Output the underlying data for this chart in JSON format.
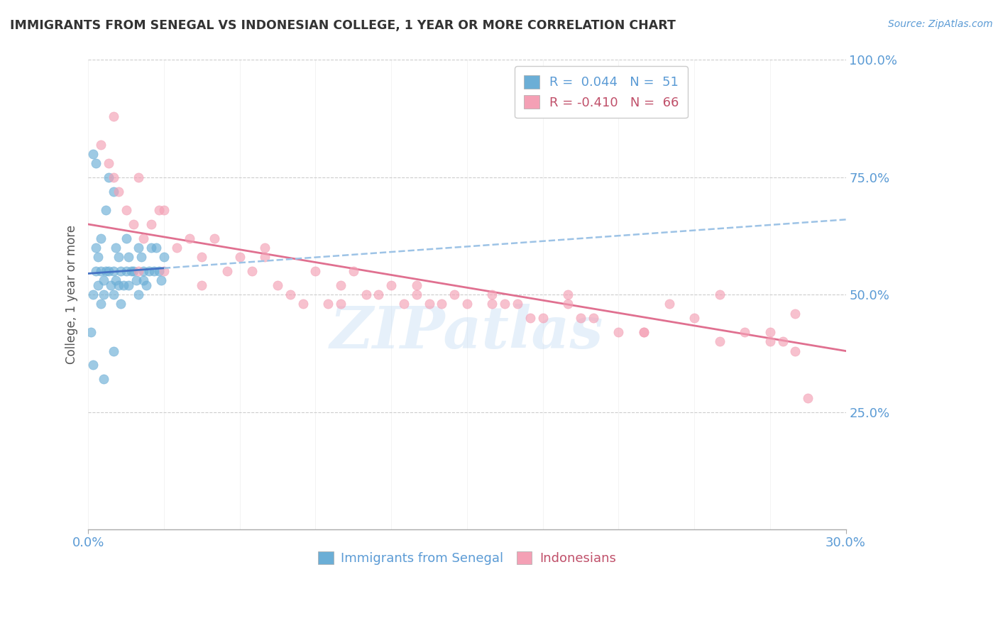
{
  "title": "IMMIGRANTS FROM SENEGAL VS INDONESIAN COLLEGE, 1 YEAR OR MORE CORRELATION CHART",
  "source_text": "Source: ZipAtlas.com",
  "ylabel": "College, 1 year or more",
  "xlim": [
    0.0,
    0.3
  ],
  "ylim": [
    0.0,
    1.0
  ],
  "ytick_labels": [
    "25.0%",
    "50.0%",
    "75.0%",
    "100.0%"
  ],
  "ytick_values": [
    0.25,
    0.5,
    0.75,
    1.0
  ],
  "blue_color": "#6baed6",
  "pink_color": "#f4a0b5",
  "blue_line_color": "#4472c4",
  "pink_line_color": "#e07090",
  "blue_dash_color": "#9dc3e6",
  "legend_entry1": "R =  0.044   N =  51",
  "legend_entry2": "R = -0.410   N =  66",
  "watermark": "ZIPatlas",
  "senegal_x": [
    0.001,
    0.002,
    0.002,
    0.003,
    0.003,
    0.004,
    0.004,
    0.005,
    0.005,
    0.005,
    0.006,
    0.006,
    0.007,
    0.007,
    0.008,
    0.008,
    0.009,
    0.01,
    0.01,
    0.01,
    0.011,
    0.011,
    0.012,
    0.012,
    0.013,
    0.013,
    0.014,
    0.015,
    0.015,
    0.016,
    0.016,
    0.017,
    0.018,
    0.019,
    0.02,
    0.02,
    0.021,
    0.022,
    0.022,
    0.023,
    0.024,
    0.025,
    0.026,
    0.027,
    0.028,
    0.029,
    0.03,
    0.002,
    0.003,
    0.006,
    0.01
  ],
  "senegal_y": [
    0.42,
    0.5,
    0.35,
    0.55,
    0.6,
    0.52,
    0.58,
    0.55,
    0.62,
    0.48,
    0.5,
    0.53,
    0.55,
    0.68,
    0.55,
    0.75,
    0.52,
    0.5,
    0.55,
    0.72,
    0.53,
    0.6,
    0.52,
    0.58,
    0.48,
    0.55,
    0.52,
    0.55,
    0.62,
    0.52,
    0.58,
    0.55,
    0.55,
    0.53,
    0.5,
    0.6,
    0.58,
    0.55,
    0.53,
    0.52,
    0.55,
    0.6,
    0.55,
    0.6,
    0.55,
    0.53,
    0.58,
    0.8,
    0.78,
    0.32,
    0.38
  ],
  "indonesian_x": [
    0.005,
    0.008,
    0.01,
    0.012,
    0.015,
    0.018,
    0.02,
    0.022,
    0.025,
    0.028,
    0.03,
    0.035,
    0.04,
    0.045,
    0.05,
    0.055,
    0.06,
    0.065,
    0.07,
    0.075,
    0.08,
    0.085,
    0.09,
    0.095,
    0.1,
    0.105,
    0.11,
    0.115,
    0.12,
    0.125,
    0.13,
    0.135,
    0.14,
    0.145,
    0.15,
    0.16,
    0.165,
    0.17,
    0.175,
    0.18,
    0.19,
    0.195,
    0.2,
    0.21,
    0.22,
    0.23,
    0.24,
    0.25,
    0.26,
    0.27,
    0.275,
    0.28,
    0.01,
    0.02,
    0.03,
    0.045,
    0.07,
    0.1,
    0.13,
    0.16,
    0.19,
    0.22,
    0.25,
    0.27,
    0.28,
    0.285
  ],
  "indonesian_y": [
    0.82,
    0.78,
    0.75,
    0.72,
    0.68,
    0.65,
    0.75,
    0.62,
    0.65,
    0.68,
    0.68,
    0.6,
    0.62,
    0.58,
    0.62,
    0.55,
    0.58,
    0.55,
    0.58,
    0.52,
    0.5,
    0.48,
    0.55,
    0.48,
    0.52,
    0.55,
    0.5,
    0.5,
    0.52,
    0.48,
    0.5,
    0.48,
    0.48,
    0.5,
    0.48,
    0.5,
    0.48,
    0.48,
    0.45,
    0.45,
    0.48,
    0.45,
    0.45,
    0.42,
    0.42,
    0.48,
    0.45,
    0.5,
    0.42,
    0.42,
    0.4,
    0.38,
    0.88,
    0.55,
    0.55,
    0.52,
    0.6,
    0.48,
    0.52,
    0.48,
    0.5,
    0.42,
    0.4,
    0.4,
    0.46,
    0.28
  ]
}
